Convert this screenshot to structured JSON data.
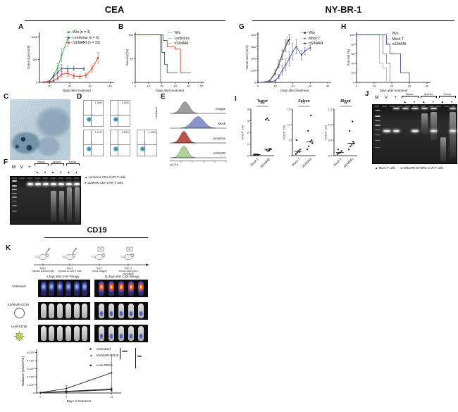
{
  "figure": {
    "section_titles": {
      "cea": "CEA",
      "nybr1": "NY-BR-1",
      "cd19": "CD19"
    },
    "panel_letters": {
      "a": "A",
      "b": "B",
      "c": "C",
      "d": "D",
      "e": "E",
      "f": "F",
      "g": "G",
      "h": "H",
      "i": "I",
      "j": "J",
      "k": "K"
    }
  },
  "colors": {
    "green": "#33a02c",
    "blue": "#3f51a3",
    "red": "#e0301e",
    "black": "#231f20",
    "gray": "#8d8d8d",
    "lightgray": "#b5b5b5",
    "slate": "#44549f"
  },
  "flow_dotplots": {
    "row_labels": [
      "Lentivirus",
      "nS/MARt"
    ],
    "plots": [
      {
        "row": 0,
        "pct": "1.38%"
      },
      {
        "row": 0,
        "pct": "1.90%"
      },
      {
        "row": 1,
        "pct": "1.07%"
      },
      {
        "row": 1,
        "pct": "0.92%"
      },
      {
        "row": 1,
        "pct": "1.03%"
      }
    ]
  },
  "flow_histograms": {
    "xlabel": "scCEA",
    "rows": [
      {
        "label": "Isotype",
        "color": "#8f8f8f",
        "peak": 0.27,
        "width": 0.075
      },
      {
        "label": "Mock",
        "color": "#7b86c2",
        "peak": 0.5,
        "width": 0.105
      },
      {
        "label": "Lentivirus",
        "color": "#b03a30",
        "peak": 0.25,
        "width": 0.068
      },
      {
        "label": "nS/MARt",
        "color": "#9fcf8a",
        "peak": 0.25,
        "width": 0.068
      }
    ]
  },
  "gel_f": {
    "lanes": [
      "M",
      "V",
      "+"
    ],
    "groups": [
      "Blood",
      "Spleen",
      "Tumor"
    ],
    "symbols": [
      "▲",
      "♦"
    ],
    "legend": [
      "▲ Lentivirus CEA-CAR-T cells",
      "♦ nS/MARt CEA CAR-T cells"
    ]
  },
  "gel_j": {
    "lanes": [
      "M",
      "V",
      "+"
    ],
    "groups": [
      "Blood",
      "Spleen",
      "Tumor"
    ],
    "symbols": [
      "▲",
      "♦"
    ],
    "legend": [
      "▲ Mock T cells",
      "♦ nS/MARt NY-BR1 CAR-T cells"
    ]
  },
  "cd19_panel": {
    "timeline": [
      {
        "day": "Day 0",
        "desc": "Injection of tumor cells"
      },
      {
        "day": "Day 3",
        "desc": "Injection of CAR-T cells"
      },
      {
        "day": "Day 7",
        "desc": "Tumor imaging"
      },
      {
        "day": "Day 14",
        "desc": "Tumor imaging and harvesting"
      }
    ],
    "column_titles": [
      "4 days after CAR therapy",
      "11 days after CAR therapy"
    ],
    "row_labels": [
      "Untreated",
      "nS/MARt-CD19",
      "Lenti-CD19"
    ],
    "sig": [
      "****",
      "***"
    ]
  },
  "chart_data": [
    {
      "id": "chart-a",
      "type": "line",
      "xlabel": "Days after treatment",
      "ylabel": "Tumor size [mm³]",
      "xlim": [
        5,
        42
      ],
      "ylim": [
        0,
        1100
      ],
      "xticks": [
        10,
        20,
        30,
        40
      ],
      "yticks": [
        0,
        500,
        1000
      ],
      "ml": 20,
      "series": [
        {
          "name": "W/o (n = 4)",
          "color": "green",
          "mk": "─■─",
          "x": [
            7,
            10,
            12,
            14,
            16,
            19
          ],
          "y": [
            5,
            30,
            150,
            320,
            600,
            950
          ],
          "err": [
            5,
            15,
            60,
            90,
            150,
            160
          ]
        },
        {
          "name": "Lentivirus (n = 6)",
          "color": "blue",
          "mk": "─■─",
          "x": [
            7,
            10,
            12,
            14,
            16,
            19,
            22,
            27
          ],
          "y": [
            5,
            25,
            130,
            210,
            310,
            300,
            305,
            300
          ],
          "err": [
            5,
            10,
            40,
            60,
            80,
            60,
            50,
            40
          ]
        },
        {
          "name": "nS/MARt (n = 10)",
          "color": "red",
          "mk": "─■─",
          "x": [
            7,
            10,
            12,
            14,
            16,
            19,
            22,
            25,
            28,
            31,
            34
          ],
          "y": [
            5,
            15,
            40,
            90,
            180,
            200,
            140,
            130,
            150,
            300,
            540
          ],
          "err": [
            5,
            8,
            20,
            40,
            60,
            70,
            50,
            40,
            50,
            80,
            120
          ]
        }
      ]
    },
    {
      "id": "chart-b",
      "type": "step",
      "xlabel": "Days after treatment",
      "ylabel": "Survival [%]",
      "xlim": [
        0,
        52
      ],
      "ylim": [
        0,
        105
      ],
      "xticks": [
        0,
        10,
        20,
        30,
        40,
        50
      ],
      "yticks": [
        0,
        50,
        100
      ],
      "ml": 16,
      "series": [
        {
          "name": "W/o",
          "color": "green",
          "mk": "──",
          "points": [
            [
              0,
              100
            ],
            [
              19,
              100
            ],
            [
              19,
              0
            ]
          ]
        },
        {
          "name": "Lentivirus",
          "color": "blue",
          "mk": "──",
          "points": [
            [
              0,
              100
            ],
            [
              20,
              100
            ],
            [
              20,
              63
            ],
            [
              22,
              63
            ],
            [
              22,
              38
            ],
            [
              24,
              38
            ],
            [
              24,
              20
            ],
            [
              32,
              20
            ]
          ]
        },
        {
          "name": "nS/MARt",
          "color": "red",
          "mk": "──",
          "points": [
            [
              0,
              100
            ],
            [
              21,
              100
            ],
            [
              21,
              88
            ],
            [
              24,
              88
            ],
            [
              24,
              75
            ],
            [
              30,
              75
            ],
            [
              30,
              70
            ],
            [
              34,
              70
            ],
            [
              34,
              20
            ],
            [
              42,
              20
            ]
          ]
        }
      ]
    },
    {
      "id": "chart-g",
      "type": "line",
      "xlabel": "Days after treatment",
      "ylabel": "Tumor size (mm³)",
      "xlim": [
        0,
        42
      ],
      "ylim": [
        0,
        420
      ],
      "xticks": [
        0,
        10,
        20,
        30,
        40
      ],
      "yticks": [
        0,
        100,
        200,
        300,
        400
      ],
      "ml": 20,
      "series": [
        {
          "name": "W/o",
          "color": "black",
          "mk": "─■─",
          "x": [
            0,
            4,
            7,
            10,
            12,
            14,
            16,
            18
          ],
          "y": [
            0,
            3,
            15,
            80,
            150,
            230,
            310,
            360
          ],
          "err": [
            0,
            2,
            5,
            20,
            30,
            40,
            50,
            40
          ]
        },
        {
          "name": "Mock T",
          "color": "gray",
          "mk": "─■─",
          "x": [
            0,
            4,
            7,
            10,
            12,
            14,
            16,
            17
          ],
          "y": [
            0,
            3,
            20,
            90,
            160,
            240,
            320,
            350
          ],
          "err": [
            0,
            2,
            5,
            20,
            30,
            40,
            40,
            30
          ]
        },
        {
          "name": "nS/MARt",
          "color": "slate",
          "mk": "─■─",
          "x": [
            0,
            4,
            7,
            10,
            12,
            14,
            16,
            18,
            20,
            22,
            25,
            27,
            30
          ],
          "y": [
            0,
            2,
            5,
            15,
            50,
            100,
            150,
            200,
            260,
            300,
            230,
            265,
            290
          ],
          "err": [
            0,
            2,
            3,
            8,
            20,
            40,
            50,
            60,
            70,
            60,
            40,
            30,
            20
          ]
        }
      ]
    },
    {
      "id": "chart-h",
      "type": "step",
      "xlabel": "Days after treatment",
      "ylabel": "Survival (%)",
      "xlim": [
        0,
        42
      ],
      "ylim": [
        0,
        105
      ],
      "xticks": [
        0,
        10,
        20,
        30,
        40
      ],
      "yticks": [
        0,
        20,
        40,
        60,
        80,
        100
      ],
      "ml": 16,
      "series": [
        {
          "name": "W/o",
          "color": "lightgray",
          "mk": "──",
          "points": [
            [
              0,
              100
            ],
            [
              13,
              100
            ],
            [
              13,
              40
            ],
            [
              15,
              40
            ],
            [
              15,
              30
            ],
            [
              17,
              30
            ],
            [
              17,
              0
            ]
          ]
        },
        {
          "name": "Mock T",
          "color": "gray",
          "mk": "──",
          "points": [
            [
              0,
              100
            ],
            [
              15,
              100
            ],
            [
              15,
              60
            ],
            [
              17,
              60
            ],
            [
              17,
              40
            ],
            [
              19,
              40
            ],
            [
              19,
              0
            ]
          ]
        },
        {
          "name": "nS/MARt",
          "color": "slate",
          "mk": "──",
          "points": [
            [
              0,
              100
            ],
            [
              17,
              100
            ],
            [
              17,
              80
            ],
            [
              19,
              80
            ],
            [
              19,
              60
            ],
            [
              25,
              60
            ],
            [
              25,
              20
            ],
            [
              30,
              20
            ],
            [
              30,
              0
            ]
          ]
        }
      ]
    },
    {
      "id": "scatter-tumor",
      "type": "scatter",
      "title": "Tumor",
      "ylabel": "hCD3⁺ (%)",
      "ylim": [
        0,
        4
      ],
      "yticks": [
        0,
        1,
        2,
        3,
        4
      ],
      "categories": [
        "Mock T",
        "nS/MARt"
      ],
      "sig": "***",
      "values": [
        [
          0.05,
          0.08,
          0.1,
          0.07,
          0.12,
          0.09
        ],
        [
          3.1,
          3.2,
          3.05,
          0.6,
          0.5,
          0.45,
          0.55,
          0.4
        ]
      ],
      "medians": [
        0.09,
        0.55
      ]
    },
    {
      "id": "scatter-spleen",
      "type": "scatter",
      "title": "Spleen",
      "ylabel": "hCD3⁺ (%)",
      "ylim": [
        0,
        15
      ],
      "yticks": [
        0,
        5,
        10,
        15
      ],
      "categories": [
        "Mock T",
        "nS/MARt"
      ],
      "sig": "*",
      "values": [
        [
          0.5,
          1.0,
          1.5,
          2.0,
          5.0,
          1.2
        ],
        [
          2.0,
          3.0,
          4.5,
          5.0,
          8.0,
          13.0,
          4.0
        ]
      ],
      "medians": [
        1.4,
        4.5
      ]
    },
    {
      "id": "scatter-blood",
      "type": "scatter",
      "title": "Blood",
      "ylabel": "hCD3⁺ (%)",
      "ylim": [
        0,
        1.5
      ],
      "yticks": [
        0,
        0.5,
        1,
        1.5
      ],
      "ytick_labels": [
        "0.0",
        "0.5",
        "1.0",
        "1.5"
      ],
      "categories": [
        "Mock T",
        "nS/MARt"
      ],
      "sig": "**",
      "values": [
        [
          0.05,
          0.08,
          0.1,
          0.15,
          0.2
        ],
        [
          0.2,
          0.3,
          0.35,
          0.45,
          0.8,
          1.1,
          0.4
        ]
      ],
      "medians": [
        0.1,
        0.4
      ]
    },
    {
      "id": "chart-k",
      "type": "line",
      "xlabel": "Days of treatment",
      "ylabel": "Radiance (p/s/cm²/sr)",
      "xlim": [
        -0.6,
        12.5
      ],
      "ylim": [
        0,
        5.4
      ],
      "xticks": [
        0,
        4,
        11
      ],
      "yticks": [
        0,
        1,
        2,
        3,
        4,
        5
      ],
      "ytick_labels": [
        "0",
        "1×10⁸",
        "2×10⁸",
        "3×10⁸",
        "4×10⁸",
        "5×10⁸"
      ],
      "ml": 24,
      "mb": 24,
      "series": [
        {
          "name": "Untreated",
          "color": "black",
          "mk": "■",
          "x": [
            0,
            4,
            11
          ],
          "y": [
            0.05,
            0.55,
            2.5
          ],
          "err": [
            0,
            0.35,
            2.2
          ]
        },
        {
          "name": "nS/MARt-CD19",
          "color": "black",
          "mk": "▲",
          "x": [
            0,
            4,
            11
          ],
          "y": [
            0.05,
            0.2,
            0.5
          ],
          "err": [
            0,
            0.1,
            0.25
          ]
        },
        {
          "name": "Lenti-CD19",
          "color": "black",
          "mk": "◆",
          "x": [
            0,
            4,
            11
          ],
          "y": [
            0.05,
            0.15,
            0.4
          ],
          "err": [
            0,
            0.08,
            0.2
          ]
        }
      ]
    }
  ]
}
